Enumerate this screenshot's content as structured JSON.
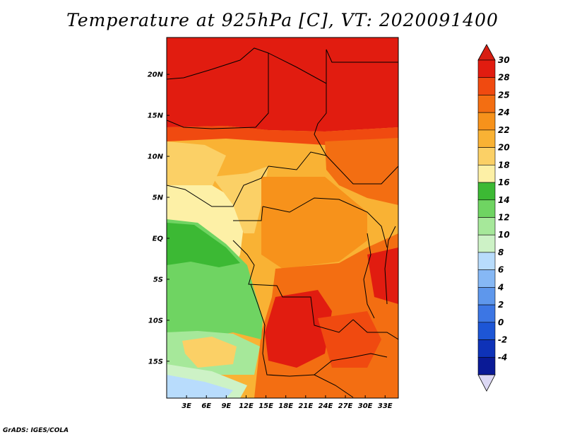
{
  "title": "Temperature at 925hPa [C], VT: 2020091400",
  "credit": "GrADS: IGES/COLA",
  "map": {
    "lat_labels": [
      "20N",
      "15N",
      "10N",
      "5N",
      "EQ",
      "5S",
      "10S",
      "15S"
    ],
    "lon_labels": [
      "3E",
      "6E",
      "9E",
      "12E",
      "15E",
      "18E",
      "21E",
      "24E",
      "27E",
      "30E",
      "33E"
    ],
    "lat_range": [
      -19.5,
      24.5
    ],
    "lon_range": [
      0,
      35
    ]
  },
  "colorbar": {
    "labels": [
      "30",
      "28",
      "25",
      "24",
      "22",
      "20",
      "18",
      "16",
      "14",
      "12",
      "10",
      "8",
      "6",
      "4",
      "2",
      "0",
      "-2",
      "-4"
    ],
    "colors": [
      "#e11c10",
      "#f04a10",
      "#f36e12",
      "#f7921b",
      "#f9b234",
      "#fbd066",
      "#fdf0a6",
      "#3cb934",
      "#6fd462",
      "#a6e89a",
      "#cdf2c6",
      "#b8dcfc",
      "#86b8f5",
      "#5e97ec",
      "#3c76e4",
      "#1d56d6",
      "#0e32b8",
      "#0a1a96"
    ],
    "max_arrow_color": "#d81e12",
    "min_arrow_color": "#dcd8f4"
  }
}
